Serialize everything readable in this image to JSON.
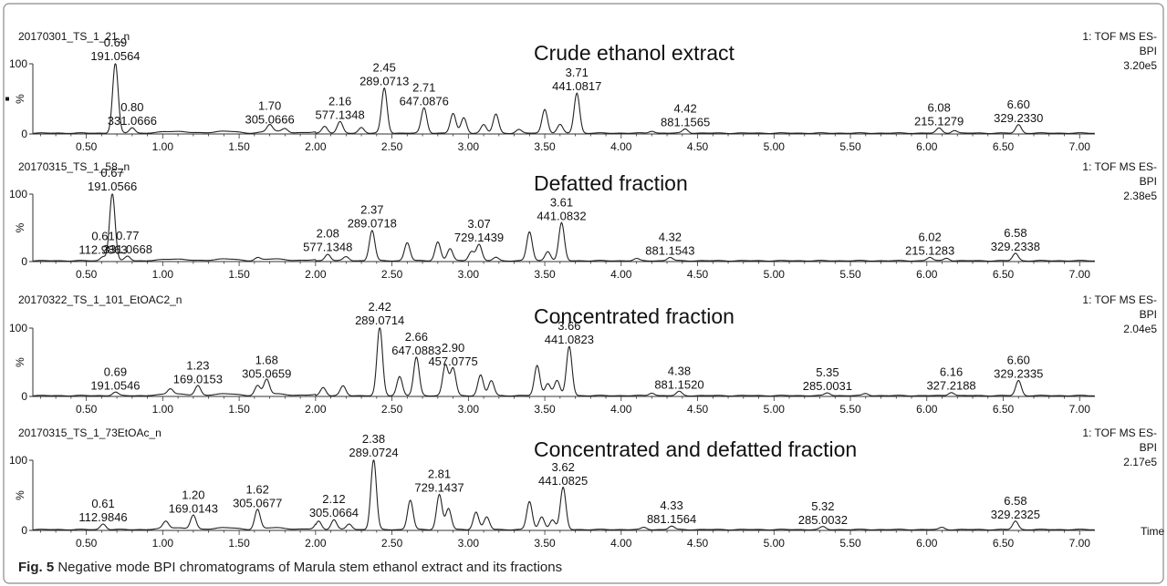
{
  "caption": {
    "label": "Fig. 5",
    "text": " Negative mode BPI chromatograms of Marula stem ethanol extract and its fractions"
  },
  "x_axis_title": "Time",
  "colors": {
    "trace": "#222222",
    "frame": "#8a8a8a"
  },
  "chart_data": [
    {
      "type": "line",
      "sample_id": "20170301_TS_1_21_n",
      "panel_label": "Crude ethanol extract",
      "detector": "1: TOF MS ES-",
      "mode": "BPI",
      "intensity": "3.20e5",
      "ylabel": "%",
      "y_ticks": [
        "0",
        "100"
      ],
      "xlim": [
        0.15,
        7.1
      ],
      "ylim": [
        0,
        100
      ],
      "x_ticks": [
        0.5,
        1.0,
        1.5,
        2.0,
        2.5,
        3.0,
        3.5,
        4.0,
        4.5,
        5.0,
        5.5,
        6.0,
        6.5,
        7.0
      ],
      "x_tick_labels": [
        "0.50",
        "1.00",
        "1.50",
        "2.00",
        "2.50",
        "3.00",
        "3.50",
        "4.00",
        "4.50",
        "5.00",
        "5.50",
        "6.00",
        "6.50",
        "7.00"
      ],
      "peaks": [
        {
          "rt": "0.69",
          "mz": "191.0564",
          "x": 0.69,
          "y": 100
        },
        {
          "rt": "0.80",
          "mz": "331.0666",
          "x": 0.8,
          "y": 8
        },
        {
          "rt": "1.70",
          "mz": "305.0666",
          "x": 1.7,
          "y": 10
        },
        {
          "rt": "2.16",
          "mz": "577.1348",
          "x": 2.16,
          "y": 16
        },
        {
          "rt": "2.45",
          "mz": "289.0713",
          "x": 2.45,
          "y": 64
        },
        {
          "rt": "2.71",
          "mz": "647.0876",
          "x": 2.71,
          "y": 36
        },
        {
          "rt": "3.71",
          "mz": "441.0817",
          "x": 3.71,
          "y": 57
        },
        {
          "rt": "4.42",
          "mz": "881.1565",
          "x": 4.42,
          "y": 6
        },
        {
          "rt": "6.08",
          "mz": "215.1279",
          "x": 6.08,
          "y": 7
        },
        {
          "rt": "6.60",
          "mz": "329.2330",
          "x": 6.6,
          "y": 12
        }
      ],
      "minor_peaks": [
        {
          "x": 1.8,
          "y": 5
        },
        {
          "x": 2.06,
          "y": 10
        },
        {
          "x": 2.3,
          "y": 8
        },
        {
          "x": 2.9,
          "y": 28
        },
        {
          "x": 2.97,
          "y": 22
        },
        {
          "x": 3.1,
          "y": 12
        },
        {
          "x": 3.18,
          "y": 27
        },
        {
          "x": 3.33,
          "y": 5
        },
        {
          "x": 3.5,
          "y": 34
        },
        {
          "x": 3.6,
          "y": 12
        },
        {
          "x": 4.2,
          "y": 3
        },
        {
          "x": 6.18,
          "y": 4
        }
      ]
    },
    {
      "type": "line",
      "sample_id": "20170315_TS_1_58_n",
      "panel_label": "Defatted fraction",
      "detector": "1: TOF MS ES-",
      "mode": "BPI",
      "intensity": "2.38e5",
      "ylabel": "%",
      "y_ticks": [
        "0",
        "100"
      ],
      "xlim": [
        0.15,
        7.1
      ],
      "ylim": [
        0,
        100
      ],
      "x_ticks": [
        0.5,
        1.0,
        1.5,
        2.0,
        2.5,
        3.0,
        3.5,
        4.0,
        4.5,
        5.0,
        5.5,
        6.0,
        6.5,
        7.0
      ],
      "x_tick_labels": [
        "0.50",
        "1.00",
        "1.50",
        "2.00",
        "2.50",
        "3.00",
        "3.50",
        "4.00",
        "4.50",
        "5.00",
        "5.50",
        "6.00",
        "6.50",
        "7.00"
      ],
      "peaks": [
        {
          "rt": "0.61",
          "mz": "112.9863",
          "x": 0.61,
          "y": 6
        },
        {
          "rt": "0.67",
          "mz": "191.0566",
          "x": 0.67,
          "y": 100
        },
        {
          "rt": "0.77",
          "mz": "331.0668",
          "x": 0.77,
          "y": 7
        },
        {
          "rt": "2.08",
          "mz": "577.1348",
          "x": 2.08,
          "y": 10
        },
        {
          "rt": "2.37",
          "mz": "289.0718",
          "x": 2.37,
          "y": 45
        },
        {
          "rt": "3.07",
          "mz": "729.1439",
          "x": 3.07,
          "y": 24
        },
        {
          "rt": "3.61",
          "mz": "441.0832",
          "x": 3.61,
          "y": 56
        },
        {
          "rt": "4.32",
          "mz": "881.1543",
          "x": 4.32,
          "y": 5
        },
        {
          "rt": "6.02",
          "mz": "215.1283",
          "x": 6.02,
          "y": 5
        },
        {
          "rt": "6.58",
          "mz": "329.2338",
          "x": 6.58,
          "y": 11
        }
      ],
      "minor_peaks": [
        {
          "x": 1.62,
          "y": 4
        },
        {
          "x": 2.2,
          "y": 6
        },
        {
          "x": 2.6,
          "y": 27
        },
        {
          "x": 2.8,
          "y": 28
        },
        {
          "x": 2.88,
          "y": 18
        },
        {
          "x": 3.02,
          "y": 14
        },
        {
          "x": 3.18,
          "y": 5
        },
        {
          "x": 3.4,
          "y": 43
        },
        {
          "x": 3.52,
          "y": 14
        },
        {
          "x": 4.1,
          "y": 3
        },
        {
          "x": 6.13,
          "y": 4
        }
      ]
    },
    {
      "type": "line",
      "sample_id": "20170322_TS_1_101_EtOAC2_n",
      "panel_label": "Concentrated fraction",
      "detector": "1: TOF MS ES-",
      "mode": "BPI",
      "intensity": "2.04e5",
      "ylabel": "%",
      "y_ticks": [
        "0",
        "100"
      ],
      "xlim": [
        0.15,
        7.1
      ],
      "ylim": [
        0,
        100
      ],
      "x_ticks": [
        0.5,
        1.0,
        1.5,
        2.0,
        2.5,
        3.0,
        3.5,
        4.0,
        4.5,
        5.0,
        5.5,
        6.0,
        6.5,
        7.0
      ],
      "x_tick_labels": [
        "0.50",
        "1.00",
        "1.50",
        "2.00",
        "2.50",
        "3.00",
        "3.50",
        "4.00",
        "4.50",
        "5.00",
        "5.50",
        "6.00",
        "6.50",
        "7.00"
      ],
      "peaks": [
        {
          "rt": "0.69",
          "mz": "191.0546",
          "x": 0.69,
          "y": 5
        },
        {
          "rt": "1.23",
          "mz": "169.0153",
          "x": 1.23,
          "y": 14
        },
        {
          "rt": "1.68",
          "mz": "305.0659",
          "x": 1.68,
          "y": 22
        },
        {
          "rt": "2.42",
          "mz": "289.0714",
          "x": 2.42,
          "y": 100
        },
        {
          "rt": "2.66",
          "mz": "647.0883",
          "x": 2.66,
          "y": 56
        },
        {
          "rt": "2.90",
          "mz": "457.0775",
          "x": 2.9,
          "y": 40
        },
        {
          "rt": "3.66",
          "mz": "441.0823",
          "x": 3.66,
          "y": 72
        },
        {
          "rt": "4.38",
          "mz": "881.1520",
          "x": 4.38,
          "y": 6
        },
        {
          "rt": "5.35",
          "mz": "285.0031",
          "x": 5.35,
          "y": 4
        },
        {
          "rt": "6.16",
          "mz": "327.2188",
          "x": 6.16,
          "y": 5
        },
        {
          "rt": "6.60",
          "mz": "329.2335",
          "x": 6.6,
          "y": 22
        }
      ],
      "minor_peaks": [
        {
          "x": 1.05,
          "y": 8
        },
        {
          "x": 1.62,
          "y": 14
        },
        {
          "x": 2.05,
          "y": 12
        },
        {
          "x": 2.18,
          "y": 14
        },
        {
          "x": 2.55,
          "y": 28
        },
        {
          "x": 2.85,
          "y": 45
        },
        {
          "x": 3.08,
          "y": 30
        },
        {
          "x": 3.15,
          "y": 22
        },
        {
          "x": 3.45,
          "y": 44
        },
        {
          "x": 3.52,
          "y": 18
        },
        {
          "x": 3.58,
          "y": 22
        },
        {
          "x": 4.2,
          "y": 4
        },
        {
          "x": 5.6,
          "y": 3
        }
      ]
    },
    {
      "type": "line",
      "sample_id": "20170315_TS_1_73EtOAc_n",
      "panel_label": "Concentrated and defatted fraction",
      "detector": "1: TOF MS ES-",
      "mode": "BPI",
      "intensity": "2.17e5",
      "ylabel": "%",
      "y_ticks": [
        "0",
        "100"
      ],
      "xlim": [
        0.15,
        7.1
      ],
      "ylim": [
        0,
        100
      ],
      "x_ticks": [
        0.5,
        1.0,
        1.5,
        2.0,
        2.5,
        3.0,
        3.5,
        4.0,
        4.5,
        5.0,
        5.5,
        6.0,
        6.5,
        7.0
      ],
      "x_tick_labels": [
        "0.50",
        "1.00",
        "1.50",
        "2.00",
        "2.50",
        "3.00",
        "3.50",
        "4.00",
        "4.50",
        "5.00",
        "5.50",
        "6.00",
        "6.50",
        "7.00"
      ],
      "peaks": [
        {
          "rt": "0.61",
          "mz": "112.9846",
          "x": 0.61,
          "y": 8
        },
        {
          "rt": "1.20",
          "mz": "169.0143",
          "x": 1.2,
          "y": 20
        },
        {
          "rt": "1.62",
          "mz": "305.0677",
          "x": 1.62,
          "y": 28
        },
        {
          "rt": "2.12",
          "mz": "305.0664",
          "x": 2.12,
          "y": 14
        },
        {
          "rt": "2.38",
          "mz": "289.0724",
          "x": 2.38,
          "y": 100
        },
        {
          "rt": "2.81",
          "mz": "729.1437",
          "x": 2.81,
          "y": 50
        },
        {
          "rt": "3.62",
          "mz": "441.0825",
          "x": 3.62,
          "y": 60
        },
        {
          "rt": "4.33",
          "mz": "881.1564",
          "x": 4.33,
          "y": 5
        },
        {
          "rt": "5.32",
          "mz": "285.0032",
          "x": 5.32,
          "y": 4
        },
        {
          "rt": "6.58",
          "mz": "329.2325",
          "x": 6.58,
          "y": 12
        }
      ],
      "minor_peaks": [
        {
          "x": 1.02,
          "y": 10
        },
        {
          "x": 2.02,
          "y": 12
        },
        {
          "x": 2.22,
          "y": 8
        },
        {
          "x": 2.62,
          "y": 42
        },
        {
          "x": 2.87,
          "y": 30
        },
        {
          "x": 3.05,
          "y": 25
        },
        {
          "x": 3.12,
          "y": 18
        },
        {
          "x": 3.4,
          "y": 40
        },
        {
          "x": 3.48,
          "y": 18
        },
        {
          "x": 3.55,
          "y": 14
        },
        {
          "x": 4.15,
          "y": 3
        },
        {
          "x": 6.1,
          "y": 3
        }
      ]
    }
  ]
}
